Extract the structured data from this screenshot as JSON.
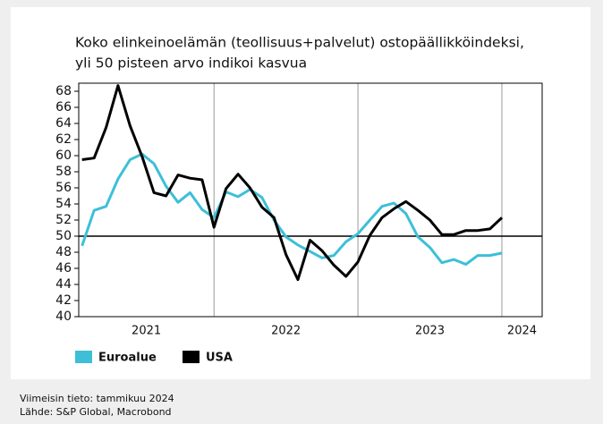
{
  "chart_data": {
    "type": "line",
    "title": "Koko elinkeinoelämän (teollisuus+palvelut) ostopäällikköindeksi,",
    "subtitle": "yli 50 pisteen arvo indikoi kasvua",
    "x": [
      2021.083,
      2021.167,
      2021.25,
      2021.333,
      2021.417,
      2021.5,
      2021.583,
      2021.667,
      2021.75,
      2021.833,
      2021.917,
      2022.0,
      2022.083,
      2022.167,
      2022.25,
      2022.333,
      2022.417,
      2022.5,
      2022.583,
      2022.667,
      2022.75,
      2022.833,
      2022.917,
      2023.0,
      2023.083,
      2023.167,
      2023.25,
      2023.333,
      2023.417,
      2023.5,
      2023.583,
      2023.667,
      2023.75,
      2023.833,
      2023.917,
      2024.0
    ],
    "series": [
      {
        "name": "Euroalue",
        "color": "#3dbfd8",
        "values": [
          48.8,
          53.2,
          53.7,
          57.1,
          59.5,
          60.2,
          59.0,
          56.2,
          54.2,
          55.4,
          53.3,
          52.3,
          55.5,
          54.9,
          55.8,
          54.8,
          52.0,
          49.9,
          48.9,
          48.1,
          47.3,
          47.6,
          49.3,
          50.3,
          52.0,
          53.7,
          54.1,
          52.8,
          49.9,
          48.6,
          46.7,
          47.1,
          46.5,
          47.6,
          47.6,
          47.9
        ]
      },
      {
        "name": "USA",
        "color": "#000000",
        "values": [
          59.5,
          59.7,
          63.5,
          68.7,
          63.7,
          59.9,
          55.4,
          55.0,
          57.6,
          57.2,
          57.0,
          51.1,
          55.9,
          57.7,
          56.0,
          53.6,
          52.3,
          47.7,
          44.6,
          49.5,
          48.2,
          46.4,
          45.0,
          46.8,
          50.1,
          52.3,
          53.4,
          54.3,
          53.2,
          52.0,
          50.2,
          50.2,
          50.7,
          50.7,
          50.9,
          52.3
        ]
      }
    ],
    "xlim": [
      2021.06,
      2024.28
    ],
    "xticks": [
      {
        "value": 2021,
        "label": "2021"
      },
      {
        "value": 2022,
        "label": "2022"
      },
      {
        "value": 2023,
        "label": "2023"
      },
      {
        "value": 2024,
        "label": "2024"
      }
    ],
    "ylim": [
      40,
      69
    ],
    "yticks": [
      40,
      42,
      44,
      46,
      48,
      50,
      52,
      54,
      56,
      58,
      60,
      62,
      64,
      66,
      68
    ],
    "reference_line": 50,
    "notes": [
      "Viimeisin tieto: tammikuu 2024",
      "Lähde: S&P Global, Macrobond"
    ]
  }
}
